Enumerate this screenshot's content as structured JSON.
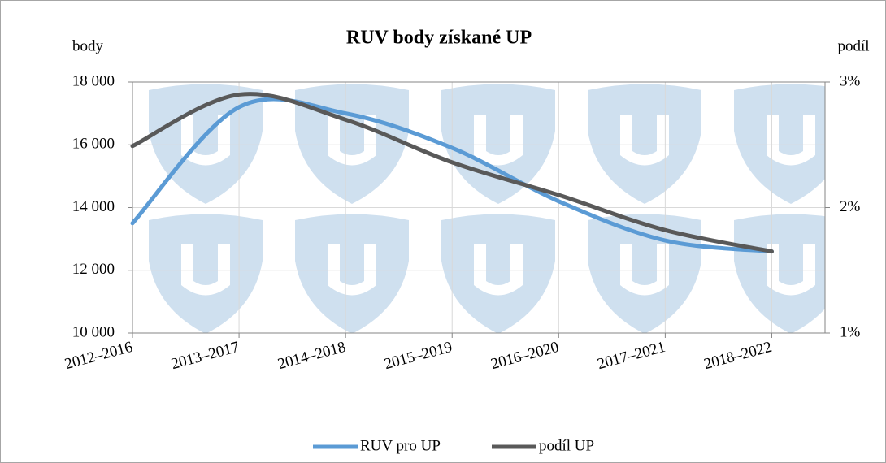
{
  "chart_data": {
    "type": "line",
    "title": "RUV body získané UP",
    "y_label": "body",
    "y2_label": "podíl",
    "categories": [
      "2012–2016",
      "2013–2017",
      "2014–2018",
      "2015–2019",
      "2016–2020",
      "2017–2021",
      "2018–2022"
    ],
    "series": [
      {
        "name": "RUV pro UP",
        "color": "#5b9bd5",
        "values": [
          13500,
          17200,
          17000,
          15900,
          14200,
          12950,
          12600
        ]
      },
      {
        "name": "podíl UP",
        "color": "#595959",
        "axis": "y2",
        "values": [
          2.49,
          2.9,
          2.7,
          2.36,
          2.1,
          1.82,
          1.65
        ]
      }
    ],
    "ylim": [
      10000,
      18000
    ],
    "yticks": [
      {
        "value": 10000,
        "label": "10 000"
      },
      {
        "value": 12000,
        "label": "12 000"
      },
      {
        "value": 14000,
        "label": "14 000"
      },
      {
        "value": 16000,
        "label": "16 000"
      },
      {
        "value": 18000,
        "label": "18 000"
      }
    ],
    "y2lim": [
      1,
      3
    ],
    "y2ticks": [
      {
        "value": 1,
        "label": "1%"
      },
      {
        "value": 2,
        "label": "2%"
      },
      {
        "value": 3,
        "label": "3%"
      }
    ],
    "grid": true,
    "legend": "bottom"
  }
}
